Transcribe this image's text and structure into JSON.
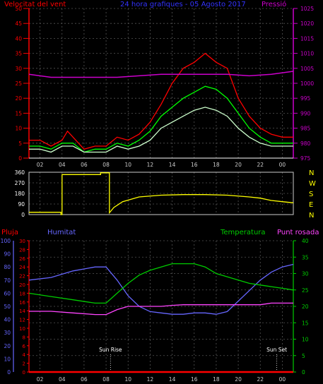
{
  "chart_data": [
    {
      "type": "line",
      "title": "24 hora grafiques - 05 Agosto 2017",
      "left_label": "Velocitat del vent",
      "right_label": "Pressió",
      "x_ticks": [
        "02",
        "04",
        "06",
        "08",
        "10",
        "12",
        "14",
        "16",
        "18",
        "20",
        "22",
        "00"
      ],
      "x_range": [
        1,
        25
      ],
      "y_left_ticks": [
        "0",
        "5",
        "10",
        "15",
        "20",
        "25",
        "30",
        "35",
        "40",
        "45",
        "50"
      ],
      "y_left_range": [
        0,
        50
      ],
      "y_right_ticks": [
        "975",
        "980",
        "985",
        "990",
        "995",
        "1000",
        "1005",
        "1010",
        "1015",
        "1020",
        "1025"
      ],
      "y_right_range": [
        975,
        1025
      ],
      "grid": true,
      "series": [
        {
          "key": "gust",
          "color": "#ff0000",
          "x": [
            1.0,
            2.0,
            3.0,
            4.0,
            4.5,
            5.0,
            6.0,
            7.0,
            8.0,
            9.0,
            10.0,
            11.0,
            12.0,
            13.0,
            14.0,
            15.0,
            16.0,
            17.0,
            18.0,
            19.0,
            20.0,
            21.0,
            22.0,
            23.0,
            24.0,
            25.0
          ],
          "y": [
            6,
            6,
            4,
            6,
            9,
            7,
            3,
            4,
            4,
            7,
            6,
            8,
            12,
            18,
            25,
            30,
            32,
            35,
            32,
            30,
            20,
            14,
            10,
            8,
            7,
            7
          ]
        },
        {
          "key": "wind_avg",
          "color": "#00ff00",
          "x": [
            1.0,
            2.0,
            3.0,
            4.0,
            5.0,
            6.0,
            7.0,
            8.0,
            9.0,
            10.0,
            11.0,
            12.0,
            13.0,
            14.0,
            15.0,
            16.0,
            17.0,
            18.0,
            19.0,
            20.0,
            21.0,
            22.0,
            23.0,
            24.0,
            25.0
          ],
          "y": [
            4,
            4,
            3,
            5,
            5,
            2,
            3,
            3,
            5,
            4,
            6,
            9,
            14,
            17,
            20,
            22,
            24,
            23,
            20,
            15,
            10,
            7,
            5,
            5,
            5
          ]
        },
        {
          "key": "wind",
          "color": "#ccffcc",
          "x": [
            1.0,
            2.0,
            3.0,
            4.0,
            5.0,
            6.0,
            7.0,
            8.0,
            9.0,
            10.0,
            11.0,
            12.0,
            13.0,
            14.0,
            15.0,
            16.0,
            17.0,
            18.0,
            19.0,
            20.0,
            21.0,
            22.0,
            23.0,
            24.0,
            25.0
          ],
          "y": [
            3,
            3,
            2,
            4,
            4,
            2,
            2,
            2,
            4,
            3,
            4,
            6,
            10,
            12,
            14,
            16,
            17,
            16,
            14,
            10,
            7,
            5,
            4,
            4,
            4
          ]
        },
        {
          "key": "pressure",
          "axis": "right",
          "color": "#cc00cc",
          "x": [
            1,
            3,
            5,
            7,
            9,
            11,
            13,
            15,
            17,
            19,
            21,
            23,
            25
          ],
          "y": [
            1003,
            1002,
            1002,
            1002,
            1002,
            1002.5,
            1003,
            1003,
            1003,
            1003,
            1002.5,
            1003,
            1004
          ]
        }
      ]
    },
    {
      "type": "line",
      "right_labels": [
        "N",
        "W",
        "S",
        "E",
        "N"
      ],
      "y_left_ticks": [
        "360",
        "270",
        "180",
        "90",
        "0"
      ],
      "y_range": [
        0,
        360
      ],
      "x_range": [
        1,
        25
      ],
      "series": [
        {
          "key": "direction",
          "color": "#ffff00",
          "x": [
            1,
            3.9,
            3.9,
            4.0,
            4.0,
            7.5,
            7.5,
            8.3,
            8.3,
            8.7,
            9.5,
            11,
            13,
            15,
            17,
            19,
            21,
            22,
            23,
            24,
            25
          ],
          "y": [
            20,
            20,
            0,
            0,
            340,
            340,
            355,
            355,
            15,
            60,
            110,
            150,
            165,
            170,
            170,
            165,
            150,
            140,
            120,
            110,
            100
          ]
        }
      ]
    },
    {
      "type": "line",
      "labels": {
        "rain": "Pluja",
        "humidity": "Humitat",
        "temperature": "Temperatura",
        "dewpoint": "Punt rosada"
      },
      "axis_rain_ticks": [
        "0",
        "10",
        "20",
        "30",
        "40",
        "50",
        "60",
        "70",
        "80",
        "90",
        "100"
      ],
      "axis_rain_range": [
        0,
        100
      ],
      "axis_hum_ticks": [
        "0",
        "2",
        "4",
        "6",
        "8",
        "10",
        "12",
        "14",
        "16",
        "18",
        "20",
        "22",
        "24",
        "26",
        "28",
        "30"
      ],
      "axis_hum_range": [
        0,
        30
      ],
      "axis_temp_ticks": [
        "0",
        "5",
        "10",
        "15",
        "20",
        "25",
        "30",
        "35",
        "40"
      ],
      "axis_temp_range": [
        0,
        40
      ],
      "x_range": [
        1,
        25
      ],
      "annotations": [
        {
          "text": "Sun Rise",
          "x": 8.4
        },
        {
          "text": "Sun Set",
          "x": 23.5
        }
      ],
      "series": [
        {
          "key": "humidity",
          "color": "#6666ff",
          "axis": "rain",
          "x": [
            1,
            3,
            5,
            7,
            8,
            9,
            10,
            11,
            12,
            13,
            14,
            15,
            16,
            17,
            18,
            19,
            20,
            21,
            22,
            23,
            24,
            25
          ],
          "y": [
            70,
            72,
            77,
            80,
            80,
            70,
            58,
            50,
            46,
            45,
            44,
            44,
            45,
            45,
            44,
            46,
            54,
            62,
            70,
            76,
            80,
            82
          ]
        },
        {
          "key": "temperature",
          "color": "#00cc00",
          "axis": "temp",
          "x": [
            1,
            3,
            5,
            7,
            8,
            9,
            10,
            11,
            12,
            13,
            14,
            15,
            16,
            17,
            18,
            19,
            20,
            21,
            22,
            23,
            24,
            25
          ],
          "y": [
            24,
            23,
            22,
            21,
            21,
            24,
            27,
            29.5,
            31,
            32,
            33,
            33,
            33,
            32,
            30,
            29,
            28,
            27,
            26.5,
            26,
            25.5,
            25
          ]
        },
        {
          "key": "dewpoint",
          "color": "#ff44ff",
          "axis": "temp",
          "x": [
            1,
            3,
            5,
            7,
            8,
            9,
            10,
            11,
            12,
            13,
            14,
            15,
            16,
            17,
            18,
            19,
            20,
            21,
            22,
            23,
            24,
            25
          ],
          "y": [
            18.5,
            18.5,
            18.0,
            17.5,
            17.5,
            19.0,
            20.0,
            20.0,
            20.0,
            20.0,
            20.3,
            20.5,
            20.5,
            20.5,
            20.5,
            20.5,
            20.5,
            20.5,
            20.5,
            21.0,
            21.0,
            21.0
          ]
        },
        {
          "key": "rain",
          "color": "#ff0000",
          "axis": "rain",
          "x": [
            1,
            25
          ],
          "y": [
            0,
            0
          ]
        }
      ]
    }
  ]
}
